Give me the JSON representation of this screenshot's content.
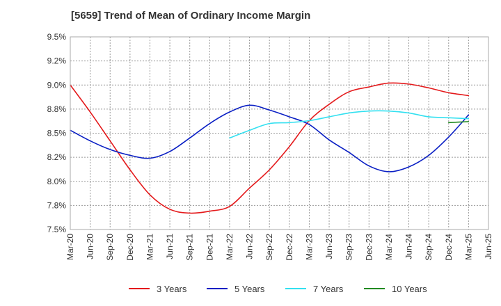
{
  "chart_data": {
    "type": "line",
    "title": "[5659]  Trend of Mean of Ordinary Income Margin",
    "xlabel": "",
    "ylabel": "",
    "y_tick_labels": [
      "9.5%",
      "9.2%",
      "9.0%",
      "8.8%",
      "8.5%",
      "8.2%",
      "8.0%",
      "7.8%",
      "7.5%"
    ],
    "ylim": [
      7.5,
      9.5
    ],
    "x_tick_labels": [
      "Mar-20",
      "Jun-20",
      "Sep-20",
      "Dec-20",
      "Mar-21",
      "Jun-21",
      "Sep-21",
      "Dec-21",
      "Mar-22",
      "Jun-22",
      "Sep-22",
      "Dec-22",
      "Mar-23",
      "Jun-23",
      "Sep-23",
      "Dec-23",
      "Mar-24",
      "Jun-24",
      "Sep-24",
      "Dec-24",
      "Mar-25",
      "Jun-25"
    ],
    "grid": true,
    "legend_position": "bottom",
    "series": [
      {
        "name": "3 Years",
        "color": "#e41a1c",
        "x": [
          "Mar-20",
          "Jun-20",
          "Sep-20",
          "Dec-20",
          "Mar-21",
          "Jun-21",
          "Sep-21",
          "Dec-21",
          "Mar-22",
          "Jun-22",
          "Sep-22",
          "Dec-22",
          "Mar-23",
          "Jun-23",
          "Sep-23",
          "Dec-23",
          "Mar-24",
          "Jun-24",
          "Sep-24",
          "Dec-24",
          "Mar-25"
        ],
        "values": [
          9.0,
          8.72,
          8.42,
          8.12,
          7.86,
          7.71,
          7.67,
          7.69,
          7.74,
          7.93,
          8.12,
          8.36,
          8.63,
          8.8,
          8.93,
          8.98,
          9.02,
          9.01,
          8.97,
          8.92,
          8.89
        ]
      },
      {
        "name": "5 Years",
        "color": "#0a1fc4",
        "x": [
          "Mar-20",
          "Jun-20",
          "Sep-20",
          "Dec-20",
          "Mar-21",
          "Jun-21",
          "Sep-21",
          "Dec-21",
          "Mar-22",
          "Jun-22",
          "Sep-22",
          "Dec-22",
          "Mar-23",
          "Jun-23",
          "Sep-23",
          "Dec-23",
          "Mar-24",
          "Jun-24",
          "Sep-24",
          "Dec-24",
          "Mar-25"
        ],
        "values": [
          8.53,
          8.42,
          8.33,
          8.27,
          8.24,
          8.31,
          8.45,
          8.6,
          8.72,
          8.79,
          8.74,
          8.67,
          8.59,
          8.43,
          8.3,
          8.16,
          8.1,
          8.15,
          8.27,
          8.46,
          8.69
        ]
      },
      {
        "name": "7 Years",
        "color": "#33e0f0",
        "x": [
          "Mar-22",
          "Jun-22",
          "Sep-22",
          "Dec-22",
          "Mar-23",
          "Jun-23",
          "Sep-23",
          "Dec-23",
          "Mar-24",
          "Jun-24",
          "Sep-24",
          "Dec-24",
          "Mar-25"
        ],
        "values": [
          8.45,
          8.53,
          8.6,
          8.61,
          8.63,
          8.67,
          8.71,
          8.73,
          8.73,
          8.71,
          8.67,
          8.66,
          8.65
        ]
      },
      {
        "name": "10 Years",
        "color": "#228b22",
        "x": [
          "Dec-24",
          "Mar-25"
        ],
        "values": [
          8.61,
          8.62
        ]
      }
    ]
  }
}
